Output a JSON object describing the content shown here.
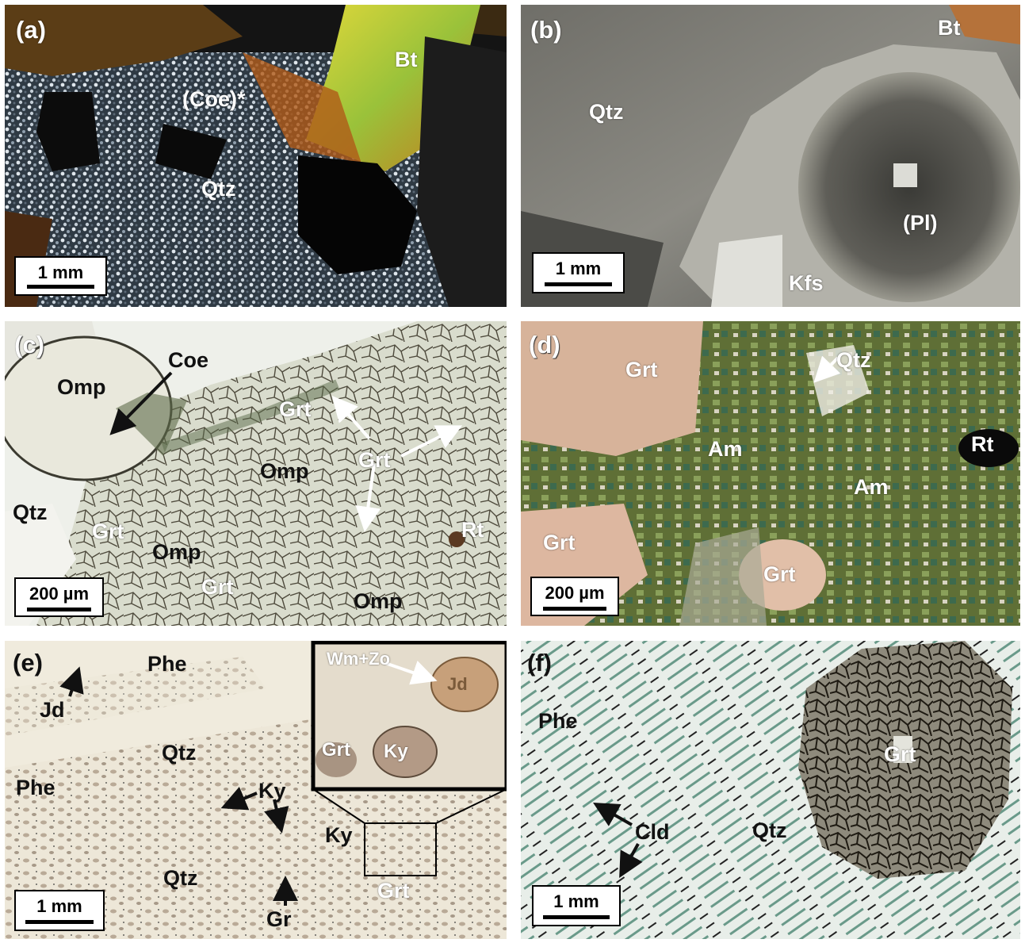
{
  "panels": {
    "a": {
      "tag": "(a)",
      "labels": {
        "bt": "Bt",
        "coe": "(Coe)*",
        "qtz": "Qtz"
      },
      "scale": "1 mm"
    },
    "b": {
      "tag": "(b)",
      "labels": {
        "bt": "Bt",
        "qtz": "Qtz",
        "pl": "(Pl)",
        "kfs": "Kfs"
      },
      "scale": "1 mm"
    },
    "c": {
      "tag": "(c)",
      "labels": {
        "coe": "Coe",
        "omp1": "Omp",
        "grt1": "Grt",
        "grt2": "Grt",
        "omp2": "Omp",
        "qtz": "Qtz",
        "grt3": "Grt",
        "omp3": "Omp",
        "grt4": "Grt",
        "omp4": "Omp",
        "rt": "Rt"
      },
      "scale": "200 µm"
    },
    "d": {
      "tag": "(d)",
      "labels": {
        "grt1": "Grt",
        "qtz": "Qtz",
        "am1": "Am",
        "rt": "Rt",
        "am2": "Am",
        "grt2": "Grt",
        "grt3": "Grt"
      },
      "scale": "200 µm"
    },
    "e": {
      "tag": "(e)",
      "labels": {
        "phe1": "Phe",
        "jd1": "Jd",
        "qtz1": "Qtz",
        "phe2": "Phe",
        "ky1": "Ky",
        "ky2": "Ky",
        "qtz2": "Qtz",
        "grt": "Grt",
        "gr": "Gr",
        "wmzo": "Wm+Zo",
        "jd2": "Jd",
        "grt_inset": "Grt",
        "ky_inset": "Ky"
      },
      "scale": "1 mm"
    },
    "f": {
      "tag": "(f)",
      "labels": {
        "phe": "Phe",
        "grt": "Grt",
        "cld": "Cld",
        "qtz": "Qtz"
      },
      "scale": "1 mm"
    }
  }
}
